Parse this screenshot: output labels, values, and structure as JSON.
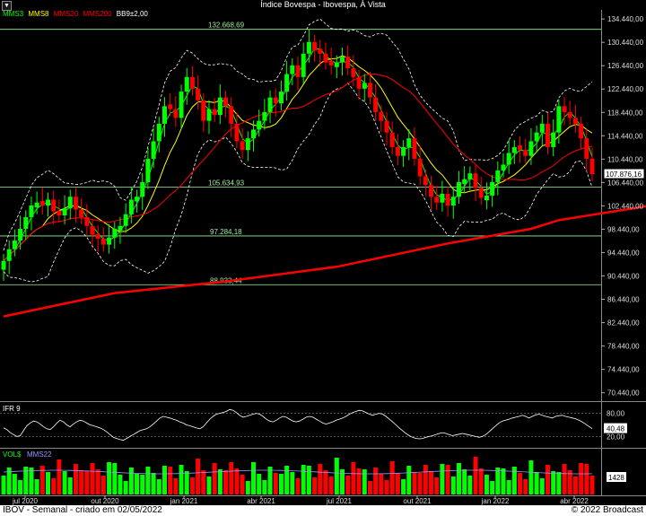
{
  "window": {
    "title": "Índice Bovespa - Ibovespa, À Vista",
    "dropdown_icon": "chevron-down-icon"
  },
  "legend": {
    "mms3": "MMS3",
    "mms8": "MMS8",
    "mms20": "MMS20",
    "mms200": "MMS200",
    "bb": "BB9±2,00",
    "colors": {
      "mms3": "#00ff00",
      "mms8": "#ffff00",
      "mms20": "#ff0000",
      "mms200": "#ff0000",
      "bb": "#ffffff"
    }
  },
  "ifr": {
    "label": "IFR 9",
    "upper": "80,00",
    "lower": "20,00",
    "value": "40,48",
    "values": [
      42,
      38,
      30,
      25,
      20,
      22,
      35,
      48,
      55,
      60,
      58,
      52,
      45,
      40,
      38,
      45,
      55,
      62,
      58,
      50,
      45,
      52,
      58,
      62,
      60,
      55,
      50,
      48,
      45,
      42,
      38,
      32,
      25,
      18,
      15,
      12,
      10,
      15,
      20,
      25,
      30,
      35,
      38,
      40,
      45,
      52,
      60,
      68,
      72,
      70,
      68,
      65,
      62,
      58,
      55,
      50,
      48,
      45,
      42,
      40,
      45,
      55,
      65,
      72,
      78,
      80,
      82,
      85,
      90,
      88,
      82,
      75,
      70,
      72,
      75,
      78,
      80,
      78,
      72,
      65,
      60,
      58,
      62,
      68,
      72,
      70,
      65,
      60,
      58,
      60,
      65,
      70,
      72,
      70,
      65,
      60,
      55,
      52,
      55,
      58,
      62,
      65,
      68,
      72,
      78,
      82,
      85,
      88,
      86,
      82,
      78,
      75,
      78,
      80,
      78,
      72,
      65,
      58,
      50,
      42,
      35,
      28,
      22,
      18,
      15,
      14,
      15,
      18,
      20,
      22,
      25,
      28,
      30,
      28,
      25,
      22,
      24,
      26,
      28,
      26,
      24,
      22,
      20,
      18,
      20,
      25,
      32,
      40,
      48,
      55,
      60,
      62,
      65,
      68,
      70,
      72,
      75,
      72,
      68,
      72,
      76,
      78,
      75,
      72,
      70,
      68,
      72,
      74,
      75,
      72,
      70,
      68,
      66,
      62,
      58,
      52,
      46,
      40.48
    ],
    "colors": {
      "line": "#ffffff"
    }
  },
  "vol": {
    "label": "VOL$",
    "ma_label": "MMS22",
    "value": "1428",
    "colors": {
      "label": "#00ff00",
      "ma_label": "#9999ff",
      "ma": "#9999ff",
      "up": "#00ff00",
      "down": "#ff0000"
    }
  },
  "status": {
    "left": "IBOV - Semanal - criado em 02/05/2022",
    "right": "© 2022 Broadcast"
  },
  "chart_data": {
    "type": "candlestick",
    "title": "Índice Bovespa - Ibovespa, À Vista",
    "x_labels": [
      "jul 2020",
      "out 2020",
      "jan 2021",
      "abr 2021",
      "jul 2021",
      "out 2021",
      "jan 2022",
      "abr 2022"
    ],
    "y_ticks": [
      "70.440,00",
      "74.440,00",
      "78.440,00",
      "82.440,00",
      "86.440,00",
      "90.440,00",
      "94.440,00",
      "98.440,00",
      "102.440,00",
      "106.440,00",
      "110.440,00",
      "114.440,00",
      "118.440,00",
      "122.440,00",
      "126.440,00",
      "130.440,00",
      "134.440,00"
    ],
    "ylim": [
      69000,
      136000
    ],
    "last_value": "107.876,16",
    "reference_lines": [
      {
        "label": "132.668,69",
        "value": 132668.69
      },
      {
        "label": "105.634,93",
        "value": 105634.93
      },
      {
        "label": "97.284,18",
        "value": 97284.18
      },
      {
        "label": "88.933,44",
        "value": 88933.44
      }
    ],
    "closes": [
      93000,
      95000,
      96500,
      98500,
      100500,
      102500,
      103000,
      102500,
      103500,
      101500,
      100800,
      102000,
      104000,
      101800,
      100500,
      99000,
      97500,
      96800,
      95800,
      97000,
      98500,
      99000,
      101000,
      103500,
      104000,
      106500,
      110500,
      113500,
      116500,
      119500,
      119000,
      117500,
      122000,
      124500,
      122500,
      120500,
      117000,
      119000,
      118000,
      121000,
      119500,
      116500,
      113500,
      112000,
      114000,
      115500,
      117000,
      118500,
      121000,
      120000,
      122000,
      125000,
      126500,
      124500,
      128500,
      130500,
      129000,
      128500,
      127000,
      126500,
      127000,
      128000,
      126000,
      124500,
      122500,
      123500,
      121000,
      118500,
      117000,
      115000,
      112500,
      111000,
      112500,
      114000,
      110500,
      107500,
      106000,
      104000,
      103000,
      104500,
      102500,
      104000,
      106500,
      107000,
      108000,
      105500,
      103800,
      104200,
      106500,
      108500,
      109500,
      111500,
      112500,
      112000,
      111000,
      113500,
      115000,
      116500,
      112500,
      115000,
      119500,
      118500,
      117500,
      116500,
      114000,
      110500,
      107876.16
    ],
    "bar_colors": [
      "up",
      "up",
      "up",
      "up",
      "up",
      "up",
      "up",
      "down",
      "up",
      "down",
      "down",
      "up",
      "up",
      "down",
      "down",
      "down",
      "down",
      "down",
      "down",
      "up",
      "up",
      "up",
      "up",
      "up",
      "up",
      "up",
      "up",
      "up",
      "up",
      "up",
      "down",
      "down",
      "up",
      "up",
      "down",
      "down",
      "down",
      "up",
      "down",
      "up",
      "down",
      "down",
      "down",
      "down",
      "up",
      "up",
      "up",
      "up",
      "up",
      "down",
      "up",
      "up",
      "up",
      "down",
      "up",
      "up",
      "down",
      "down",
      "down",
      "down",
      "up",
      "up",
      "down",
      "down",
      "down",
      "up",
      "down",
      "down",
      "down",
      "down",
      "down",
      "down",
      "up",
      "up",
      "down",
      "down",
      "down",
      "down",
      "down",
      "up",
      "down",
      "up",
      "up",
      "up",
      "up",
      "down",
      "down",
      "up",
      "up",
      "up",
      "up",
      "up",
      "up",
      "down",
      "down",
      "up",
      "up",
      "up",
      "down",
      "up",
      "up",
      "down",
      "down",
      "down",
      "down",
      "down",
      "down"
    ],
    "series": [
      {
        "name": "MMS3",
        "color": "#00ff00"
      },
      {
        "name": "MMS8",
        "color": "#ffff00"
      },
      {
        "name": "MMS20",
        "color": "#ff0000"
      },
      {
        "name": "MMS200",
        "color": "#ff0000"
      },
      {
        "name": "BB9±2,00",
        "color": "#ffffff"
      }
    ],
    "mms200": [
      [
        0,
        83500
      ],
      [
        20,
        87500
      ],
      [
        40,
        89500
      ],
      [
        60,
        92000
      ],
      [
        80,
        96000
      ],
      [
        95,
        98500
      ],
      [
        100,
        100000
      ],
      [
        110,
        101500
      ],
      [
        120,
        103000
      ]
    ],
    "grid": false
  }
}
